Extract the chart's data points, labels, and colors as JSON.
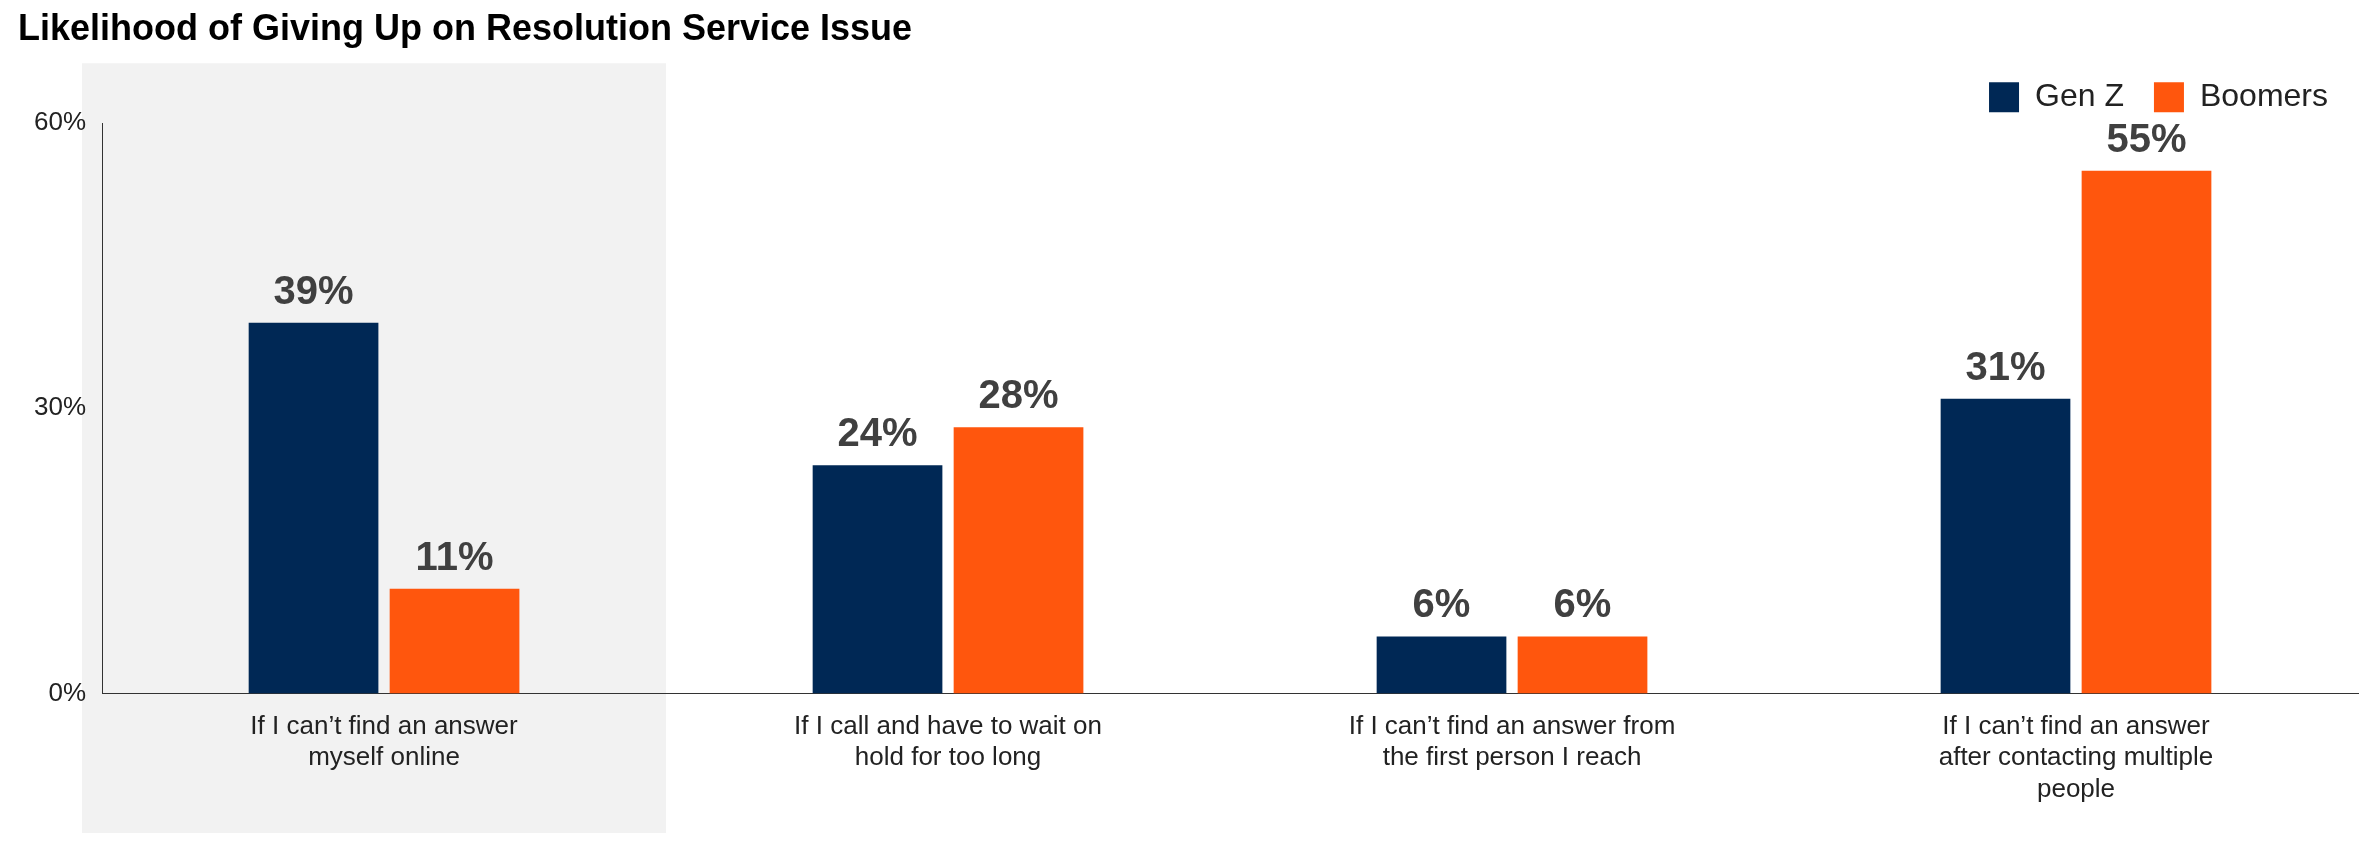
{
  "chart_data": {
    "type": "bar",
    "title": "Likelihood of Giving Up on Resolution Service Issue",
    "categories": [
      "If I can’t find an answer myself online",
      "If I call and have to wait on hold for too long",
      "If I can’t find an answer from the first person I reach",
      "If I can’t find an answer after contacting multiple people"
    ],
    "series": [
      {
        "name": "Gen Z",
        "color": "#002855",
        "values": [
          39,
          24,
          6,
          31
        ]
      },
      {
        "name": "Boomers",
        "color": "#ff560d",
        "values": [
          11,
          28,
          6,
          55
        ]
      }
    ],
    "ylim": [
      0,
      60
    ],
    "yticks": [
      {
        "value": 0,
        "label": "0%"
      },
      {
        "value": 30,
        "label": "30%"
      },
      {
        "value": 60,
        "label": "60%"
      }
    ],
    "value_labels": [
      [
        "39%",
        "24%",
        "6%",
        "31%"
      ],
      [
        "11%",
        "28%",
        "6%",
        "55%"
      ]
    ],
    "bands": [
      {
        "axis": "x",
        "from": "If I can’t find an answer myself online",
        "to": "If I can’t find an answer myself online",
        "color": "#f2f2f2"
      }
    ],
    "grid": false,
    "legend": "top right"
  }
}
